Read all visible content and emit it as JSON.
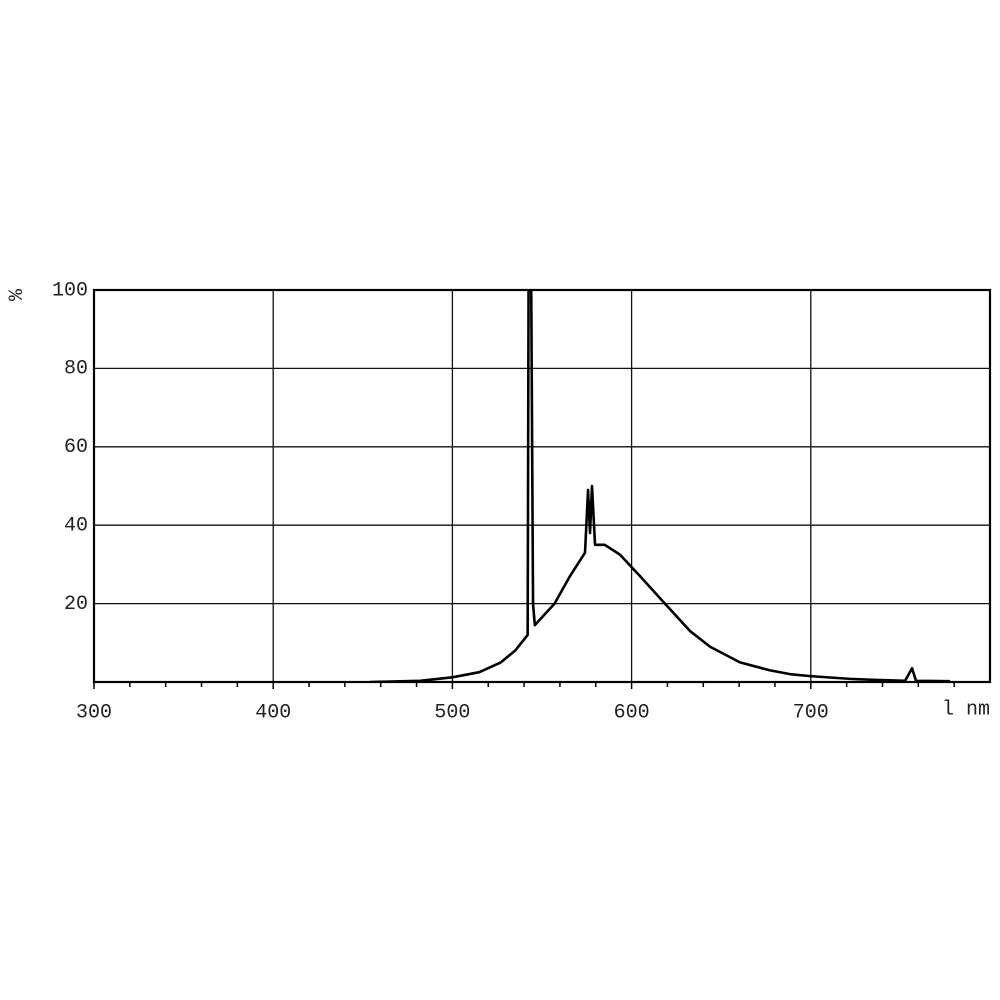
{
  "chart_data": {
    "type": "line",
    "y_label": "%",
    "x_label": "l nm",
    "xlim": [
      300,
      800
    ],
    "xticks": [
      300,
      400,
      500,
      600,
      700
    ],
    "xminorticks": [
      320,
      340,
      360,
      380,
      420,
      440,
      460,
      480,
      520,
      540,
      560,
      580,
      620,
      640,
      660,
      680,
      720,
      740,
      760,
      780
    ],
    "ylim": [
      0,
      100
    ],
    "yticks": [
      20,
      40,
      60,
      80,
      100
    ],
    "grid": true,
    "series": [
      {
        "color": "#000000",
        "x": [
          454,
          482,
          500,
          515,
          527,
          535,
          542,
          542.5,
          544,
          545,
          546,
          557,
          565.6,
          574,
          575.7,
          576.8,
          577.9,
          579.6,
          585,
          593.5,
          604.7,
          618.6,
          632.6,
          643.8,
          660.5,
          677,
          688.4,
          699.6,
          722,
          738.6,
          752.6,
          756.5,
          758.7,
          777.7
        ],
        "values": [
          0,
          0.3,
          1.2,
          2.5,
          5,
          8,
          12,
          100,
          100,
          20,
          14.5,
          20,
          27,
          33,
          49,
          38,
          50,
          35,
          35,
          32.5,
          27,
          20,
          13,
          9,
          5,
          3,
          2,
          1.5,
          0.8,
          0.5,
          0.3,
          3.5,
          0.3,
          0.2
        ]
      }
    ]
  }
}
